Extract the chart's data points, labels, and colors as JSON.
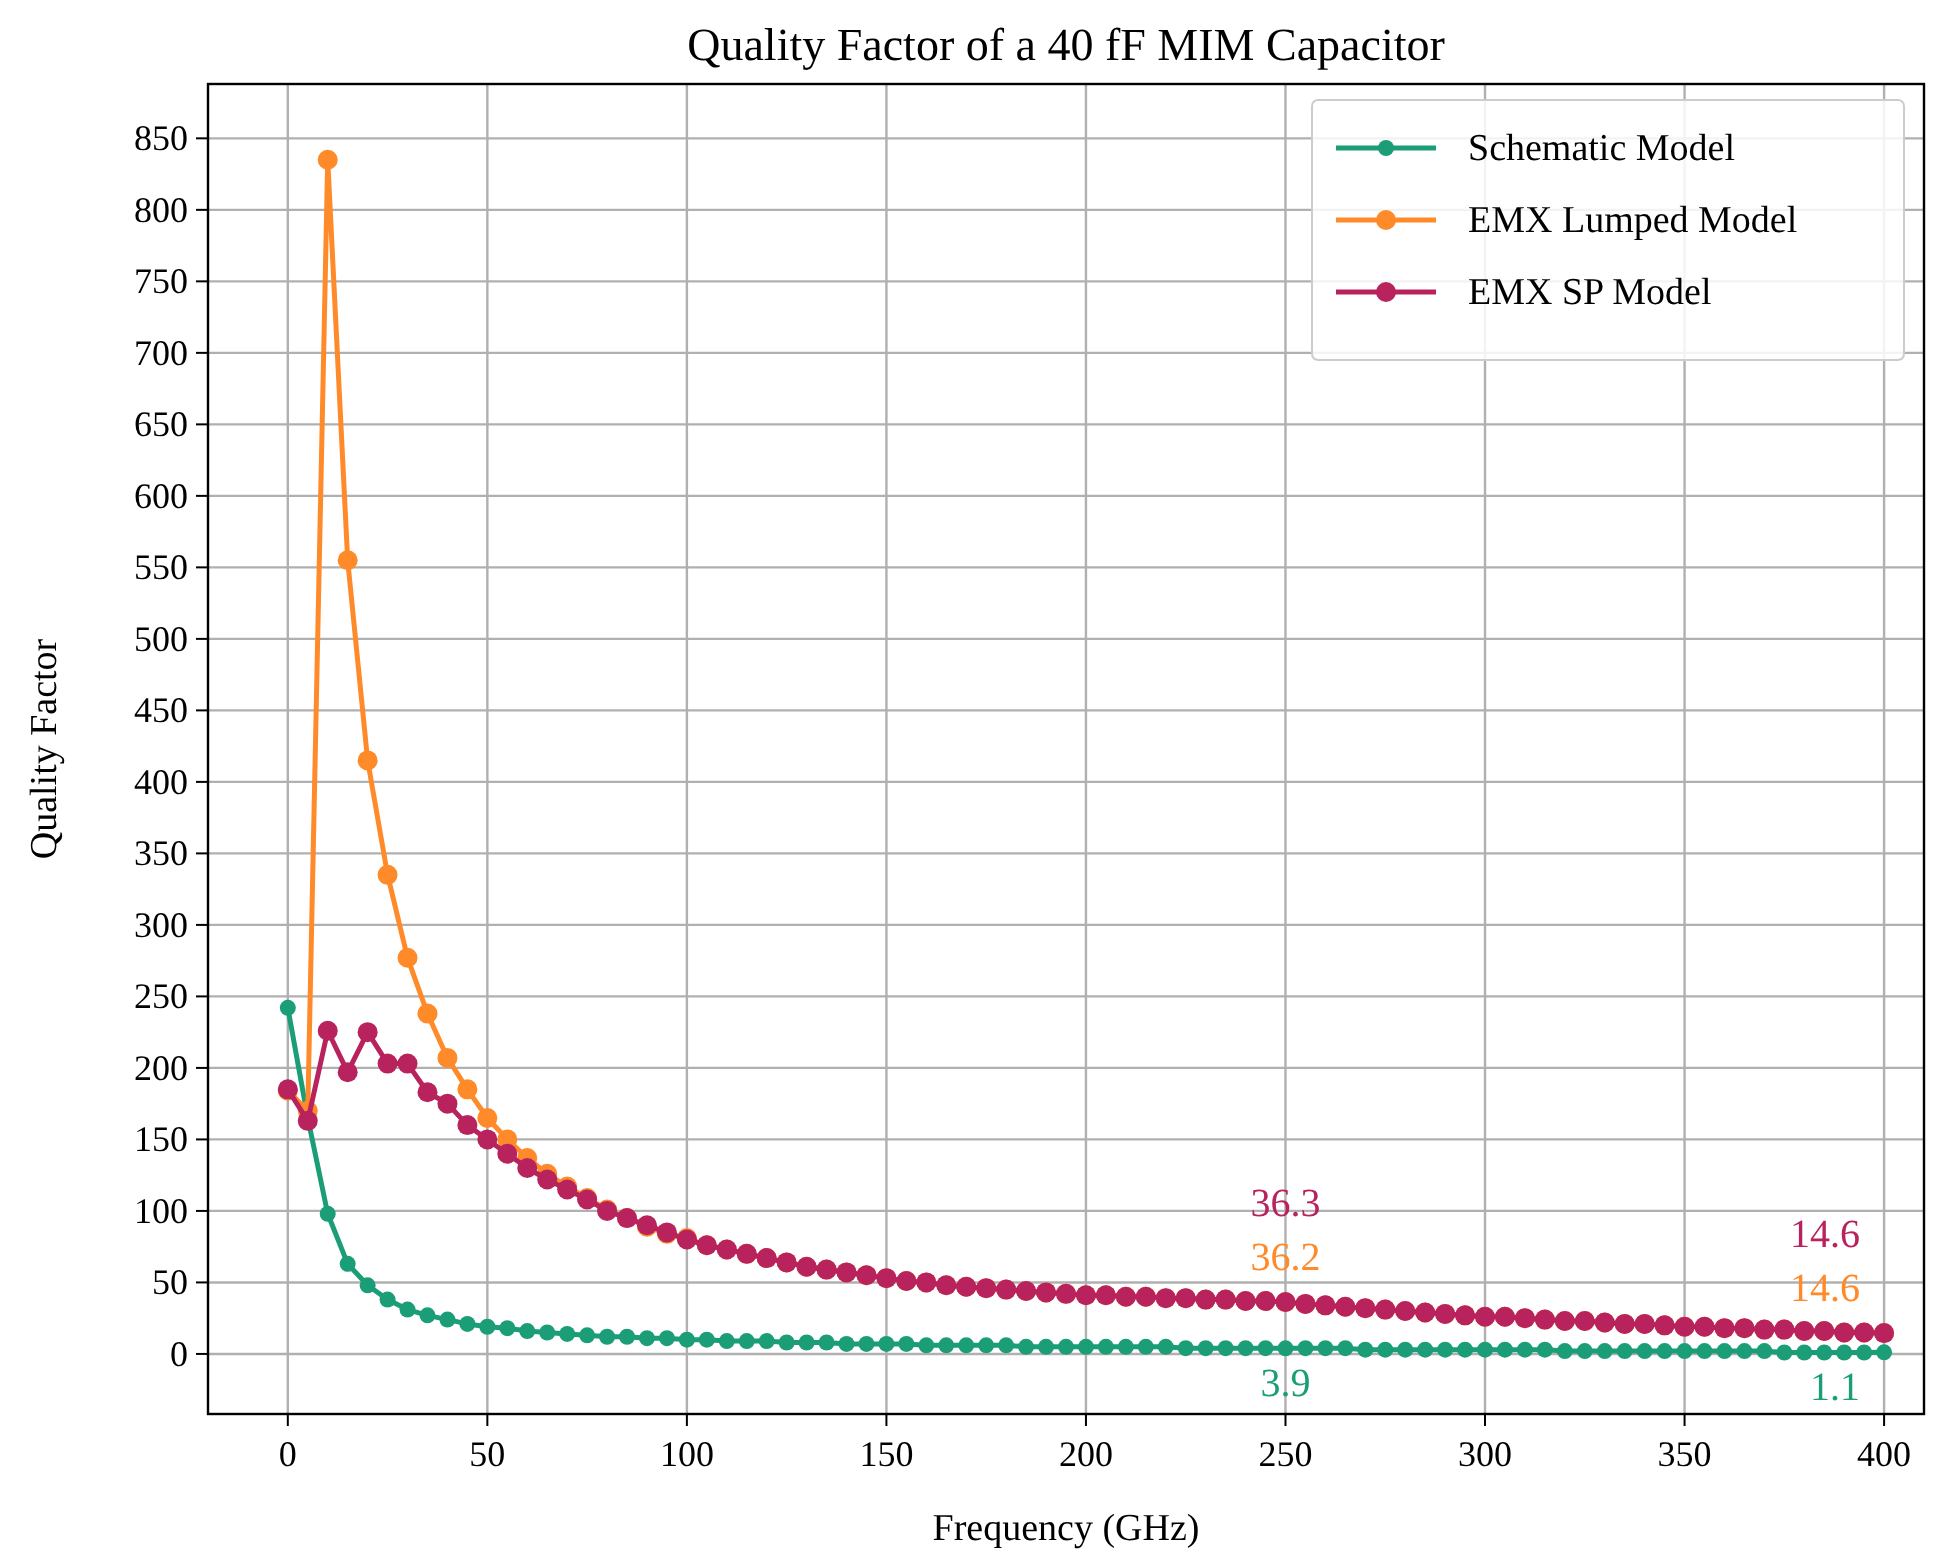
{
  "chart_data": {
    "type": "line",
    "title": "Quality Factor of a 40 fF MIM Capacitor",
    "xlabel": "Frequency (GHz)",
    "ylabel": "Quality Factor",
    "x": [
      0,
      5,
      10,
      15,
      20,
      25,
      30,
      35,
      40,
      45,
      50,
      55,
      60,
      65,
      70,
      75,
      80,
      85,
      90,
      95,
      100,
      105,
      110,
      115,
      120,
      125,
      130,
      135,
      140,
      145,
      150,
      155,
      160,
      165,
      170,
      175,
      180,
      185,
      190,
      195,
      200,
      205,
      210,
      215,
      220,
      225,
      230,
      235,
      240,
      245,
      250,
      255,
      260,
      265,
      270,
      275,
      280,
      285,
      290,
      295,
      300,
      305,
      310,
      315,
      320,
      325,
      330,
      335,
      340,
      345,
      350,
      355,
      360,
      365,
      370,
      375,
      380,
      385,
      390,
      395,
      400
    ],
    "series": [
      {
        "name": "Schematic Model",
        "color": "#1b9e77",
        "values": [
          242,
          165,
          98,
          63,
          48,
          38,
          31,
          27,
          24,
          21,
          19,
          18,
          16,
          15,
          14,
          13,
          12,
          12,
          11,
          11,
          10,
          10,
          9,
          9,
          9,
          8,
          8,
          8,
          7,
          7,
          7,
          7,
          6,
          6,
          6,
          6,
          6,
          5,
          5,
          5,
          5,
          5,
          5,
          5,
          5,
          4,
          4,
          4,
          4,
          4,
          3.9,
          4,
          4,
          4,
          3,
          3,
          3,
          3,
          3,
          3,
          3,
          3,
          3,
          3,
          2,
          2,
          2,
          2,
          2,
          2,
          2,
          2,
          2,
          2,
          2,
          1,
          1,
          1,
          1,
          1,
          1.1
        ],
        "value_labels": [
          null,
          null,
          null,
          null,
          null,
          null,
          null,
          null,
          null,
          null,
          null,
          null,
          null,
          null,
          null,
          null,
          null,
          null,
          null,
          null,
          null,
          null,
          null,
          null,
          null,
          null,
          null,
          null,
          null,
          null,
          null,
          null,
          null,
          null,
          null,
          null,
          null,
          null,
          null,
          null,
          null,
          null,
          null,
          null,
          null,
          null,
          null,
          null,
          null,
          null,
          "3.9",
          null,
          null,
          null,
          null,
          null,
          null,
          null,
          null,
          null,
          null,
          null,
          null,
          null,
          null,
          null,
          null,
          null,
          null,
          null,
          null,
          null,
          null,
          null,
          null,
          null,
          null,
          null,
          null,
          null,
          "1.1"
        ]
      },
      {
        "name": "EMX Lumped Model",
        "color": "#ff8a2a",
        "values": [
          184,
          170,
          835,
          555,
          415,
          335,
          277,
          238,
          207,
          185,
          165,
          150,
          137,
          126,
          117,
          109,
          101,
          95,
          89,
          84,
          81,
          76,
          73,
          70,
          67,
          64,
          61,
          59,
          57,
          55,
          53,
          51,
          50,
          48,
          47,
          46,
          45,
          44,
          43,
          42,
          41,
          41,
          40,
          40,
          39,
          39,
          38,
          38,
          37,
          37,
          36.2,
          35,
          34,
          33,
          32,
          31,
          30,
          29,
          28,
          27,
          26,
          26,
          25,
          24,
          23,
          23,
          22,
          21,
          21,
          20,
          19,
          19,
          18,
          18,
          17,
          17,
          16,
          16,
          15,
          15,
          14.6
        ],
        "value_labels": [
          null,
          null,
          null,
          null,
          null,
          null,
          null,
          null,
          null,
          null,
          null,
          null,
          null,
          null,
          null,
          null,
          null,
          null,
          null,
          null,
          null,
          null,
          null,
          null,
          null,
          null,
          null,
          null,
          null,
          null,
          null,
          null,
          null,
          null,
          null,
          null,
          null,
          null,
          null,
          null,
          null,
          null,
          null,
          null,
          null,
          null,
          null,
          null,
          null,
          null,
          "36.2",
          null,
          null,
          null,
          null,
          null,
          null,
          null,
          null,
          null,
          null,
          null,
          null,
          null,
          null,
          null,
          null,
          null,
          null,
          null,
          null,
          null,
          null,
          null,
          null,
          null,
          null,
          null,
          null,
          null,
          "14.6"
        ]
      },
      {
        "name": "EMX SP Model",
        "color": "#b8235e",
        "values": [
          185,
          163,
          226,
          197,
          225,
          203,
          203,
          183,
          175,
          160,
          150,
          140,
          130,
          122,
          115,
          108,
          100,
          95,
          90,
          85,
          80,
          76,
          73,
          70,
          67,
          64,
          61,
          59,
          57,
          55,
          53,
          51,
          50,
          48,
          47,
          46,
          45,
          44,
          43,
          42,
          41,
          41,
          40,
          40,
          39,
          39,
          38,
          38,
          37,
          37,
          36.3,
          35,
          34,
          33,
          32,
          31,
          30,
          29,
          28,
          27,
          26,
          26,
          25,
          24,
          23,
          23,
          22,
          21,
          21,
          20,
          19,
          19,
          18,
          18,
          17,
          17,
          16,
          16,
          15,
          15,
          14.6
        ],
        "value_labels": [
          null,
          null,
          null,
          null,
          null,
          null,
          null,
          null,
          null,
          null,
          null,
          null,
          null,
          null,
          null,
          null,
          null,
          null,
          null,
          null,
          null,
          null,
          null,
          null,
          null,
          null,
          null,
          null,
          null,
          null,
          null,
          null,
          null,
          null,
          null,
          null,
          null,
          null,
          null,
          null,
          null,
          null,
          null,
          null,
          null,
          null,
          null,
          null,
          null,
          null,
          "36.3",
          null,
          null,
          null,
          null,
          null,
          null,
          null,
          null,
          null,
          null,
          null,
          null,
          null,
          null,
          null,
          null,
          null,
          null,
          null,
          null,
          null,
          null,
          null,
          null,
          null,
          null,
          null,
          null,
          null,
          "14.6"
        ]
      }
    ],
    "xlim": [
      -20,
      410
    ],
    "xticks": [
      0,
      50,
      100,
      150,
      200,
      250,
      300,
      350,
      400
    ],
    "ylim": [
      -42,
      888
    ],
    "yticks": [
      0,
      50,
      100,
      150,
      200,
      250,
      300,
      350,
      400,
      450,
      500,
      550,
      600,
      650,
      700,
      750,
      800,
      850
    ],
    "grid": true,
    "legend": "top right",
    "marker": "circle",
    "line_style": "solid"
  }
}
